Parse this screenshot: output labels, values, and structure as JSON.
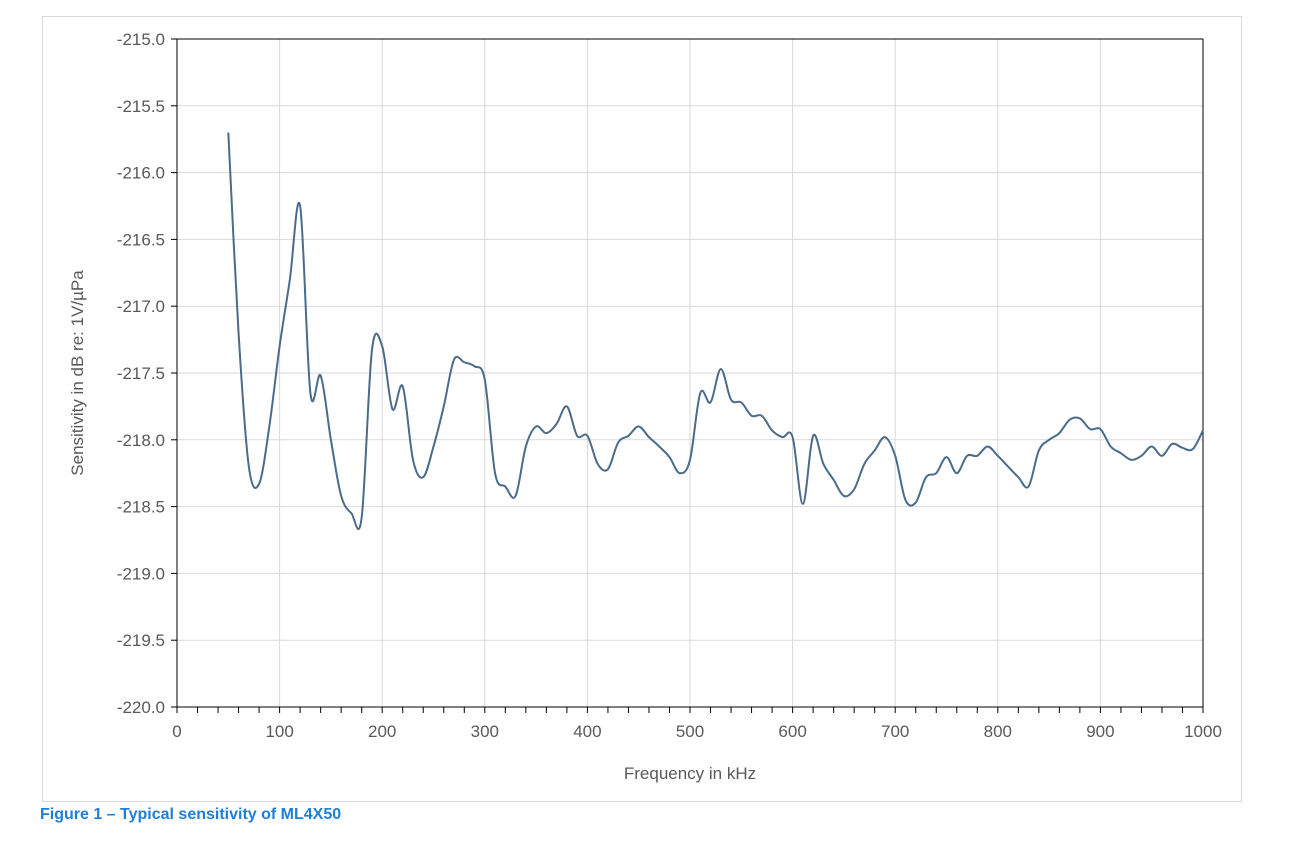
{
  "caption": "Figure 1 – Typical sensitivity of ML4X50",
  "colors": {
    "line": "#4a6b8a",
    "grid": "#d9d9d9",
    "axis": "#000000",
    "text": "#595959",
    "caption": "#1f7fd6"
  },
  "chart_data": {
    "type": "line",
    "title": "",
    "xlabel": "Frequency in kHz",
    "ylabel": "Sensitivity in dB re: 1V/µPa",
    "xlim": [
      0,
      1000
    ],
    "ylim": [
      -220.0,
      -215.0
    ],
    "xticks": [
      "0",
      "100",
      "200",
      "300",
      "400",
      "500",
      "600",
      "700",
      "800",
      "900",
      "1000"
    ],
    "yticks": [
      "-215.0",
      "-215.5",
      "-216.0",
      "-216.5",
      "-217.0",
      "-217.5",
      "-218.0",
      "-218.5",
      "-219.0",
      "-219.5",
      "-220.0"
    ],
    "grid": true,
    "legend": "none",
    "series": [
      {
        "x": [
          50,
          60,
          70,
          80,
          90,
          100,
          110,
          120,
          130,
          140,
          150,
          160,
          170,
          180,
          190,
          200,
          210,
          220,
          230,
          240,
          250,
          260,
          270,
          280,
          290,
          300,
          310,
          320,
          330,
          340,
          350,
          360,
          370,
          380,
          390,
          400,
          410,
          420,
          430,
          440,
          450,
          460,
          470,
          480,
          490,
          500,
          510,
          520,
          530,
          540,
          550,
          560,
          570,
          580,
          590,
          600,
          610,
          620,
          630,
          640,
          650,
          660,
          670,
          680,
          690,
          700,
          710,
          720,
          730,
          740,
          750,
          760,
          770,
          780,
          790,
          800,
          810,
          820,
          830,
          840,
          850,
          860,
          870,
          880,
          890,
          900,
          910,
          920,
          930,
          940,
          950,
          960,
          970,
          980,
          990,
          1000
        ],
        "values": [
          -215.7,
          -217.2,
          -218.2,
          -218.33,
          -217.9,
          -217.3,
          -216.8,
          -216.25,
          -217.65,
          -217.52,
          -218.0,
          -218.42,
          -218.55,
          -218.58,
          -217.33,
          -217.3,
          -217.77,
          -217.6,
          -218.15,
          -218.28,
          -218.05,
          -217.75,
          -217.4,
          -217.42,
          -217.45,
          -217.55,
          -218.25,
          -218.35,
          -218.42,
          -218.05,
          -217.9,
          -217.95,
          -217.88,
          -217.75,
          -217.97,
          -217.97,
          -218.18,
          -218.22,
          -218.02,
          -217.97,
          -217.9,
          -217.98,
          -218.05,
          -218.13,
          -218.25,
          -218.15,
          -217.65,
          -217.72,
          -217.47,
          -217.7,
          -217.72,
          -217.82,
          -217.82,
          -217.93,
          -217.98,
          -217.98,
          -218.48,
          -217.97,
          -218.18,
          -218.3,
          -218.42,
          -218.37,
          -218.18,
          -218.08,
          -217.98,
          -218.12,
          -218.45,
          -218.47,
          -218.28,
          -218.25,
          -218.13,
          -218.25,
          -218.12,
          -218.12,
          -218.05,
          -218.12,
          -218.2,
          -218.28,
          -218.35,
          -218.08,
          -218.0,
          -217.95,
          -217.85,
          -217.84,
          -217.92,
          -217.92,
          -218.05,
          -218.1,
          -218.15,
          -218.12,
          -218.05,
          -218.12,
          -218.03,
          -218.06,
          -218.07,
          -217.93
        ]
      }
    ]
  }
}
